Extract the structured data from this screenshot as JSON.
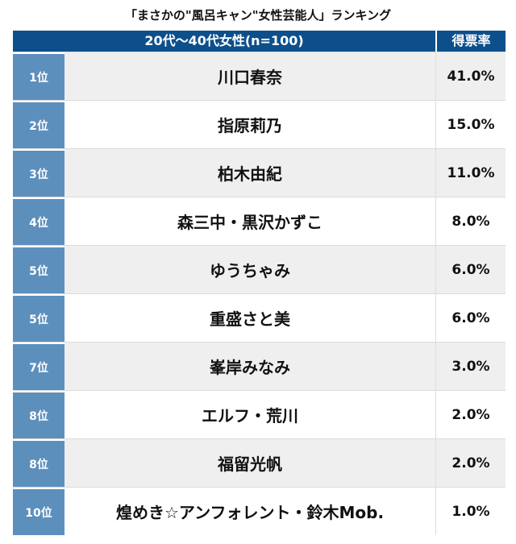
{
  "title": "「まさかの\"風呂キャン\"女性芸能人」ランキング",
  "chart_data": {
    "type": "table",
    "title": "「まさかの\"風呂キャン\"女性芸能人」ランキング",
    "header": {
      "group": "20代〜40代女性(n=100)",
      "value": "得票率"
    },
    "rows": [
      {
        "rank": "1位",
        "name": "川口春奈",
        "value": "41.0%"
      },
      {
        "rank": "2位",
        "name": "指原莉乃",
        "value": "15.0%"
      },
      {
        "rank": "3位",
        "name": "柏木由紀",
        "value": "11.0%"
      },
      {
        "rank": "4位",
        "name": "森三中・黒沢かずこ",
        "value": "8.0%"
      },
      {
        "rank": "5位",
        "name": "ゆうちゃみ",
        "value": "6.0%"
      },
      {
        "rank": "5位",
        "name": "重盛さと美",
        "value": "6.0%"
      },
      {
        "rank": "7位",
        "name": "峯岸みなみ",
        "value": "3.0%"
      },
      {
        "rank": "8位",
        "name": "エルフ・荒川",
        "value": "2.0%"
      },
      {
        "rank": "8位",
        "name": "福留光帆",
        "value": "2.0%"
      },
      {
        "rank": "10位",
        "name": "煌めき☆アンフォレント・鈴木Mob.",
        "value": "1.0%"
      }
    ]
  },
  "colors": {
    "header": "#0d4f8b",
    "rank": "#5d8fbd",
    "alt_row": "#efefef"
  }
}
